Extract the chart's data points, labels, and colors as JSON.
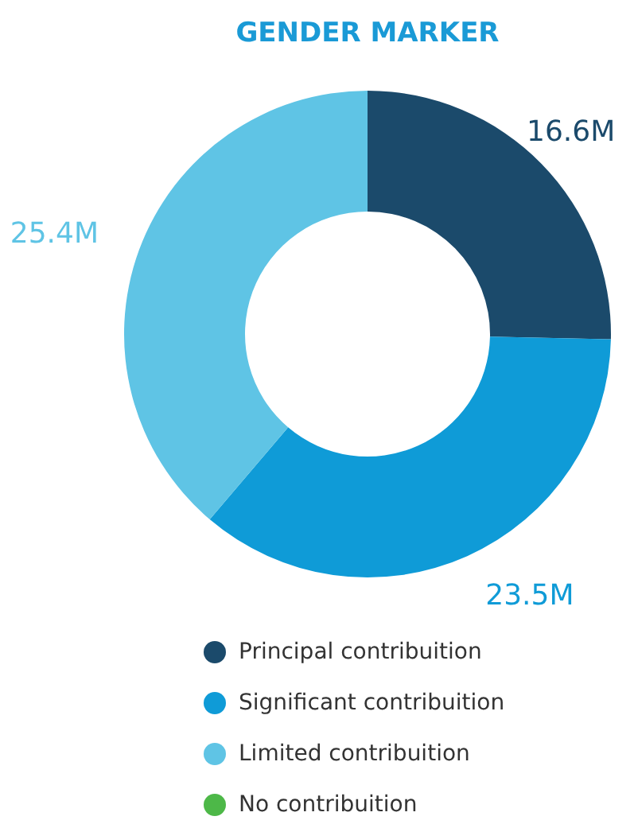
{
  "chart_data": {
    "type": "donut",
    "title": "GENDER MARKER",
    "categories": [
      "Principal contribuition",
      "Significant contribuition",
      "Limited contribuition",
      "No contribuition"
    ],
    "values": [
      16.6,
      23.5,
      25.4,
      0
    ],
    "colors": [
      "#1b4a6b",
      "#0f9bd7",
      "#5fc4e5",
      "#4db848"
    ],
    "value_labels": [
      "16.6M",
      "23.5M",
      "25.4M",
      null
    ],
    "legend": "bottom"
  }
}
